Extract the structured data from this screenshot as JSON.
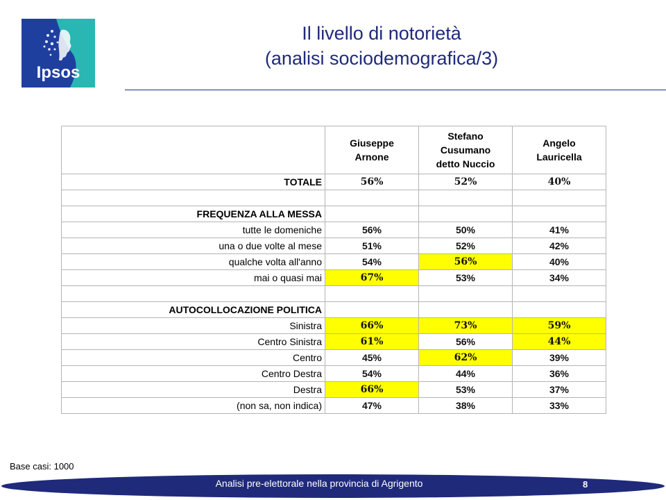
{
  "logo": {
    "text": "Ipsos",
    "colors": {
      "blue": "#1f3f9f",
      "teal": "#2ab6b3"
    }
  },
  "title": {
    "line1": "Il livello di notorietà",
    "line2": "(analisi sociodemografica/3)"
  },
  "table": {
    "columns": [
      {
        "line1": "Giuseppe",
        "line2": "Arnone",
        "line3": ""
      },
      {
        "line1": "Stefano",
        "line2": "Cusumano",
        "line3": "detto Nuccio"
      },
      {
        "line1": "Angelo",
        "line2": "Lauricella",
        "line3": ""
      }
    ],
    "rows": [
      {
        "label": "TOTALE",
        "values": [
          "56%",
          "52%",
          "40%"
        ]
      },
      {
        "label": "",
        "values": [
          "",
          "",
          ""
        ]
      },
      {
        "label": "FREQUENZA ALLA MESSA",
        "values": [
          "",
          "",
          ""
        ]
      },
      {
        "label": "tutte le domeniche",
        "values": [
          "56%",
          "50%",
          "41%"
        ]
      },
      {
        "label": "una o due volte al mese",
        "values": [
          "51%",
          "52%",
          "42%"
        ]
      },
      {
        "label": "qualche volta all'anno",
        "values": [
          "54%",
          "56%",
          "40%"
        ]
      },
      {
        "label": "mai o quasi mai",
        "values": [
          "67%",
          "53%",
          "34%"
        ]
      },
      {
        "label": "",
        "values": [
          "",
          "",
          ""
        ]
      },
      {
        "label": "AUTOCOLLOCAZIONE POLITICA",
        "values": [
          "",
          "",
          ""
        ]
      },
      {
        "label": "Sinistra",
        "values": [
          "66%",
          "73%",
          "59%"
        ]
      },
      {
        "label": "Centro Sinistra",
        "values": [
          "61%",
          "56%",
          "44%"
        ]
      },
      {
        "label": "Centro",
        "values": [
          "45%",
          "62%",
          "39%"
        ]
      },
      {
        "label": "Centro Destra",
        "values": [
          "54%",
          "44%",
          "36%"
        ]
      },
      {
        "label": "Destra",
        "values": [
          "66%",
          "53%",
          "37%"
        ]
      },
      {
        "label": "(non sa, non indica)",
        "values": [
          "47%",
          "38%",
          "33%"
        ]
      }
    ],
    "highlight_color": "#ffff00"
  },
  "base_note": "Base casi: 1000",
  "footer": {
    "text": "Analisi pre-elettorale nella provincia di Agrigento",
    "page": "8",
    "color": "#1f2a7a"
  }
}
